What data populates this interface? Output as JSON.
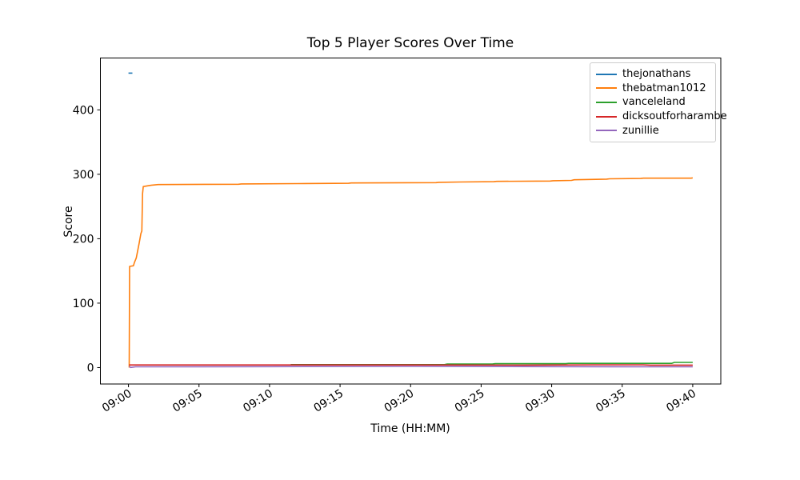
{
  "figure": {
    "background": "#ffffff"
  },
  "chart_data": {
    "type": "line",
    "title": "Top 5 Player Scores Over Time",
    "xlabel": "Time (HH:MM)",
    "ylabel": "Score",
    "grid": false,
    "legend_position": "upper right",
    "x_unit": "minutes after 09:00",
    "xlim": [
      -1.99,
      41.99
    ],
    "ylim": [
      -25.5,
      480.5
    ],
    "x_ticks": [
      {
        "value": 0,
        "label": "09:00"
      },
      {
        "value": 5,
        "label": "09:05"
      },
      {
        "value": 10,
        "label": "09:10"
      },
      {
        "value": 15,
        "label": "09:15"
      },
      {
        "value": 20,
        "label": "09:20"
      },
      {
        "value": 25,
        "label": "09:25"
      },
      {
        "value": 30,
        "label": "09:30"
      },
      {
        "value": 35,
        "label": "09:35"
      },
      {
        "value": 40,
        "label": "09:40"
      }
    ],
    "y_ticks": [
      {
        "value": 0,
        "label": "0"
      },
      {
        "value": 100,
        "label": "100"
      },
      {
        "value": 200,
        "label": "200"
      },
      {
        "value": 300,
        "label": "300"
      },
      {
        "value": 400,
        "label": "400"
      }
    ],
    "series": [
      {
        "name": "thejonathans",
        "color": "#1f77b4",
        "points": [
          [
            0,
            457
          ],
          [
            0.28,
            457
          ]
        ]
      },
      {
        "name": "thebatman1012",
        "color": "#ff7f0e",
        "points": [
          [
            0.05,
            0
          ],
          [
            0.08,
            157
          ],
          [
            0.35,
            158
          ],
          [
            0.42,
            163
          ],
          [
            0.55,
            170
          ],
          [
            0.75,
            192
          ],
          [
            0.88,
            208
          ],
          [
            0.95,
            212
          ],
          [
            1.0,
            270
          ],
          [
            1.05,
            281
          ],
          [
            1.6,
            283
          ],
          [
            2.1,
            284
          ],
          [
            7.8,
            284.5
          ],
          [
            8.0,
            285
          ],
          [
            12,
            285.5
          ],
          [
            15.6,
            286
          ],
          [
            15.8,
            286.5
          ],
          [
            21.8,
            287
          ],
          [
            22.0,
            287.5
          ],
          [
            23.5,
            288
          ],
          [
            25.9,
            288.5
          ],
          [
            26.1,
            289
          ],
          [
            29.9,
            289.5
          ],
          [
            30.1,
            290
          ],
          [
            31.4,
            290.5
          ],
          [
            31.6,
            291.5
          ],
          [
            33.9,
            292.5
          ],
          [
            34.1,
            293
          ],
          [
            36.3,
            293.5
          ],
          [
            36.5,
            294
          ],
          [
            39.9,
            294
          ],
          [
            40,
            294.5
          ]
        ]
      },
      {
        "name": "vanceleland",
        "color": "#2ca02c",
        "points": [
          [
            11.5,
            4.5
          ],
          [
            22.4,
            4.5
          ],
          [
            22.6,
            5.5
          ],
          [
            25.8,
            5.5
          ],
          [
            26.0,
            6
          ],
          [
            31.0,
            6
          ],
          [
            31.2,
            6.5
          ],
          [
            38.5,
            6.5
          ],
          [
            38.7,
            8
          ],
          [
            40,
            8
          ]
        ]
      },
      {
        "name": "dicksoutforharambe",
        "color": "#d62728",
        "points": [
          [
            0.05,
            4
          ],
          [
            20,
            4
          ],
          [
            28,
            3.8
          ],
          [
            33,
            4.3
          ],
          [
            36.5,
            4.3
          ],
          [
            37,
            3.8
          ],
          [
            40,
            3.8
          ]
        ]
      },
      {
        "name": "zunillie",
        "color": "#9467bd",
        "points": [
          [
            0.05,
            2
          ],
          [
            0.15,
            0.2
          ],
          [
            0.5,
            1.2
          ],
          [
            10,
            1.5
          ],
          [
            20,
            1.8
          ],
          [
            30,
            1.5
          ],
          [
            36,
            1.2
          ],
          [
            40,
            1.2
          ]
        ]
      }
    ]
  }
}
